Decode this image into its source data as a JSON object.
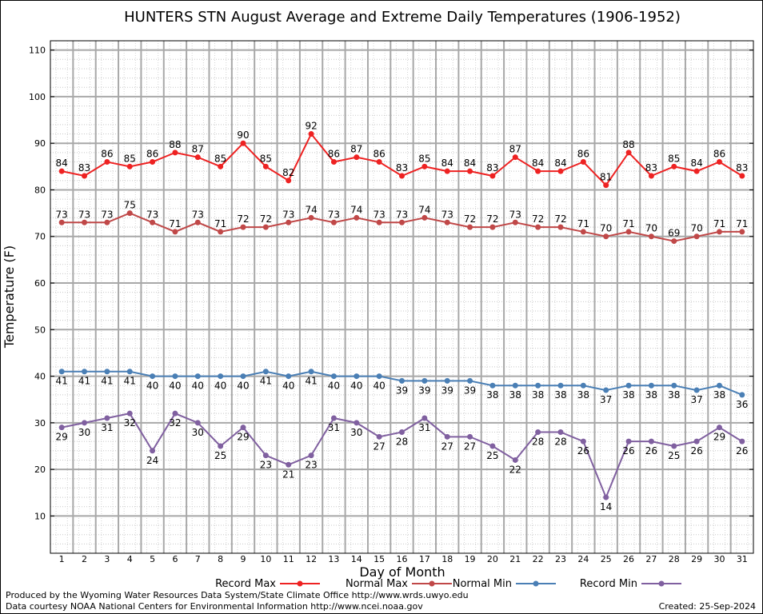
{
  "chart_data": {
    "type": "line",
    "title": "HUNTERS STN August Average and Extreme Daily Temperatures (1906-1952)",
    "xlabel": "Day of Month",
    "ylabel": "Temperature (F)",
    "xlim": [
      0.5,
      31.5
    ],
    "ylim": [
      2,
      112
    ],
    "yticks": [
      10,
      20,
      30,
      40,
      50,
      60,
      70,
      80,
      90,
      100,
      110
    ],
    "x": [
      1,
      2,
      3,
      4,
      5,
      6,
      7,
      8,
      9,
      10,
      11,
      12,
      13,
      14,
      15,
      16,
      17,
      18,
      19,
      20,
      21,
      22,
      23,
      24,
      25,
      26,
      27,
      28,
      29,
      30,
      31
    ],
    "grid": true,
    "legend_position": "bottom",
    "series": [
      {
        "name": "Record Max",
        "color": "#ee2222",
        "label_pos": "above",
        "values": [
          84,
          83,
          86,
          85,
          86,
          88,
          87,
          85,
          90,
          85,
          82,
          92,
          86,
          87,
          86,
          83,
          85,
          84,
          84,
          83,
          87,
          84,
          84,
          86,
          81,
          88,
          83,
          85,
          84,
          86,
          83
        ]
      },
      {
        "name": "Normal Max",
        "color": "#c04848",
        "label_pos": "above",
        "values": [
          73,
          73,
          73,
          75,
          73,
          71,
          73,
          71,
          72,
          72,
          73,
          74,
          73,
          74,
          73,
          73,
          74,
          73,
          72,
          72,
          73,
          72,
          72,
          71,
          70,
          71,
          70,
          69,
          70,
          71,
          71
        ]
      },
      {
        "name": "Normal Min",
        "color": "#4a7fb5",
        "label_pos": "below",
        "values": [
          41,
          41,
          41,
          41,
          40,
          40,
          40,
          40,
          40,
          41,
          40,
          41,
          40,
          40,
          40,
          39,
          39,
          39,
          39,
          38,
          38,
          38,
          38,
          38,
          37,
          38,
          38,
          38,
          37,
          38,
          36
        ]
      },
      {
        "name": "Record Min",
        "color": "#8060a0",
        "label_pos": "below",
        "values": [
          29,
          30,
          31,
          32,
          24,
          32,
          30,
          25,
          29,
          23,
          21,
          23,
          31,
          30,
          27,
          28,
          31,
          27,
          27,
          25,
          22,
          28,
          28,
          26,
          14,
          26,
          26,
          25,
          26,
          29,
          26
        ]
      }
    ]
  },
  "footer": {
    "line1": "Produced by the Wyoming Water Resources Data System/State Climate Office http://www.wrds.uwyo.edu",
    "line2": "Data courtesy NOAA National Centers for Environmental Information http://www.ncei.noaa.gov",
    "created": "Created:  25-Sep-2024"
  }
}
